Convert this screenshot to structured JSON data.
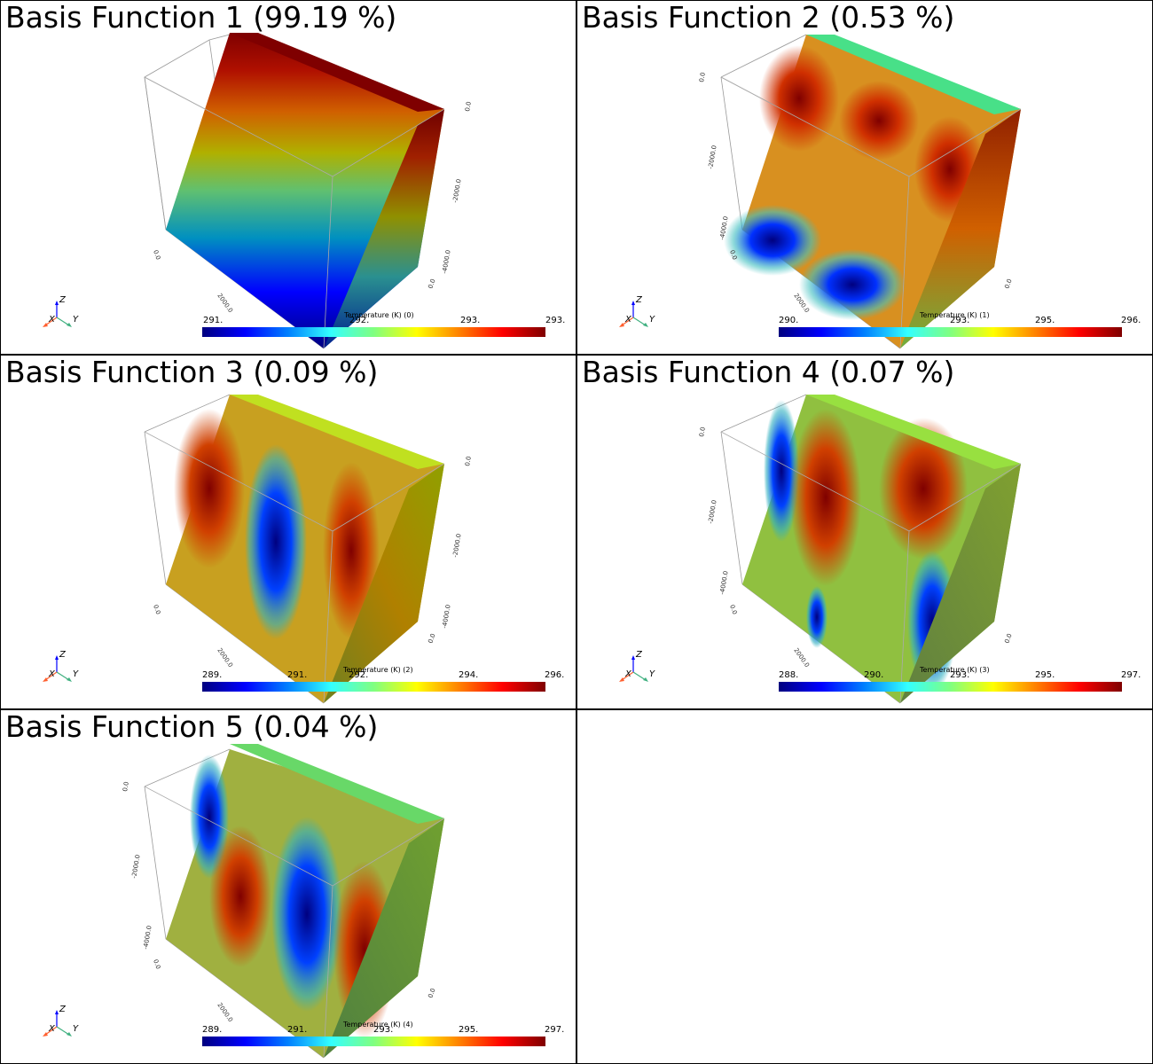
{
  "panels": [
    {
      "title": "Basis Function 1 (99.19 %)",
      "colorbar": {
        "title": "Temperature (K) (0)",
        "ticks": [
          "291.",
          "292.",
          "293.",
          "293."
        ]
      },
      "axis_labels": {
        "z_top": "0.0",
        "z_mid": "-2000.0",
        "z_bot": "-4000.0",
        "x0": "0.0",
        "x1": "2000.0",
        "y0": "0.0"
      },
      "triad": {
        "x": "X",
        "y": "Y",
        "z": "Z"
      }
    },
    {
      "title": "Basis Function 2 (0.53 %)",
      "colorbar": {
        "title": "Temperature (K) (1)",
        "ticks": [
          "290.",
          "293.",
          "295.",
          "296."
        ]
      },
      "axis_labels": {
        "z_top": "0.0",
        "z_mid": "-2000.0",
        "z_bot": "-4000.0",
        "x0": "0.0",
        "x1": "2000.0",
        "y0": "0.0"
      },
      "triad": {
        "x": "X",
        "y": "Y",
        "z": "Z"
      }
    },
    {
      "title": "Basis Function 3 (0.09 %)",
      "colorbar": {
        "title": "Temperature (K) (2)",
        "ticks": [
          "289.",
          "291.",
          "292.",
          "294.",
          "296."
        ]
      },
      "axis_labels": {
        "z_top": "0.0",
        "z_mid": "-2000.0",
        "z_bot": "-4000.0",
        "x0": "0.0",
        "x1": "2000.0",
        "y0": "0.0"
      },
      "triad": {
        "x": "X",
        "y": "Y",
        "z": "Z"
      }
    },
    {
      "title": "Basis Function 4 (0.07 %)",
      "colorbar": {
        "title": "Temperature (K) (3)",
        "ticks": [
          "288.",
          "290.",
          "293.",
          "295.",
          "297."
        ]
      },
      "axis_labels": {
        "z_top": "0.0",
        "z_mid": "-2000.0",
        "z_bot": "-4000.0",
        "x0": "0.0",
        "x1": "2000.0",
        "y0": "0.0"
      },
      "triad": {
        "x": "X",
        "y": "Y",
        "z": "Z"
      }
    },
    {
      "title": "Basis Function 5 (0.04 %)",
      "colorbar": {
        "title": "Temperature (K) (4)",
        "ticks": [
          "289.",
          "291.",
          "293.",
          "295.",
          "297."
        ]
      },
      "axis_labels": {
        "z_top": "0.0",
        "z_mid": "-2000.0",
        "z_bot": "-4000.0",
        "x0": "0.0",
        "x1": "2000.0",
        "y0": "0.0"
      },
      "triad": {
        "x": "X",
        "y": "Y",
        "z": "Z"
      }
    }
  ],
  "colormap": [
    "#00007f",
    "#0000ff",
    "#0080ff",
    "#33ffff",
    "#80ff80",
    "#ffff00",
    "#ff8000",
    "#ff0000",
    "#7f0000"
  ]
}
